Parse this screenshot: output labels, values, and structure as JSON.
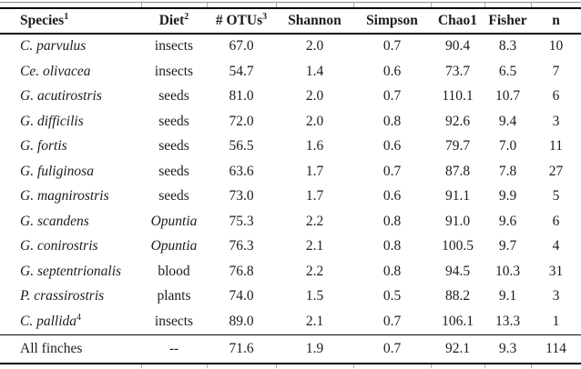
{
  "table": {
    "columns": [
      {
        "label": "Species",
        "sup": "1"
      },
      {
        "label": "Diet",
        "sup": "2"
      },
      {
        "label": "# OTUs",
        "sup": "3"
      },
      {
        "label": "Shannon",
        "sup": ""
      },
      {
        "label": "Simpson",
        "sup": ""
      },
      {
        "label": "Chao1",
        "sup": ""
      },
      {
        "label": "Fisher",
        "sup": ""
      },
      {
        "label": "n",
        "sup": ""
      }
    ],
    "rows": [
      {
        "species": "C. parvulus",
        "species_sup": "",
        "species_italic": true,
        "diet": "insects",
        "diet_italic": false,
        "otus": "67.0",
        "shannon": "2.0",
        "simpson": "0.7",
        "chao1": "90.4",
        "fisher": "8.3",
        "n": "10"
      },
      {
        "species": "Ce. olivacea",
        "species_sup": "",
        "species_italic": true,
        "diet": "insects",
        "diet_italic": false,
        "otus": "54.7",
        "shannon": "1.4",
        "simpson": "0.6",
        "chao1": "73.7",
        "fisher": "6.5",
        "n": "7"
      },
      {
        "species": "G. acutirostris",
        "species_sup": "",
        "species_italic": true,
        "diet": "seeds",
        "diet_italic": false,
        "otus": "81.0",
        "shannon": "2.0",
        "simpson": "0.7",
        "chao1": "110.1",
        "fisher": "10.7",
        "n": "6"
      },
      {
        "species": "G. difficilis",
        "species_sup": "",
        "species_italic": true,
        "diet": "seeds",
        "diet_italic": false,
        "otus": "72.0",
        "shannon": "2.0",
        "simpson": "0.8",
        "chao1": "92.6",
        "fisher": "9.4",
        "n": "3"
      },
      {
        "species": "G. fortis",
        "species_sup": "",
        "species_italic": true,
        "diet": "seeds",
        "diet_italic": false,
        "otus": "56.5",
        "shannon": "1.6",
        "simpson": "0.6",
        "chao1": "79.7",
        "fisher": "7.0",
        "n": "11"
      },
      {
        "species": "G. fuliginosa",
        "species_sup": "",
        "species_italic": true,
        "diet": "seeds",
        "diet_italic": false,
        "otus": "63.6",
        "shannon": "1.7",
        "simpson": "0.7",
        "chao1": "87.8",
        "fisher": "7.8",
        "n": "27"
      },
      {
        "species": "G. magnirostris",
        "species_sup": "",
        "species_italic": true,
        "diet": "seeds",
        "diet_italic": false,
        "otus": "73.0",
        "shannon": "1.7",
        "simpson": "0.6",
        "chao1": "91.1",
        "fisher": "9.9",
        "n": "5"
      },
      {
        "species": "G. scandens",
        "species_sup": "",
        "species_italic": true,
        "diet": "Opuntia",
        "diet_italic": true,
        "otus": "75.3",
        "shannon": "2.2",
        "simpson": "0.8",
        "chao1": "91.0",
        "fisher": "9.6",
        "n": "6"
      },
      {
        "species": "G. conirostris",
        "species_sup": "",
        "species_italic": true,
        "diet": "Opuntia",
        "diet_italic": true,
        "otus": "76.3",
        "shannon": "2.1",
        "simpson": "0.8",
        "chao1": "100.5",
        "fisher": "9.7",
        "n": "4"
      },
      {
        "species": "G. septentrionalis",
        "species_sup": "",
        "species_italic": true,
        "diet": "blood",
        "diet_italic": false,
        "otus": "76.8",
        "shannon": "2.2",
        "simpson": "0.8",
        "chao1": "94.5",
        "fisher": "10.3",
        "n": "31"
      },
      {
        "species": "P. crassirostris",
        "species_sup": "",
        "species_italic": true,
        "diet": "plants",
        "diet_italic": false,
        "otus": "74.0",
        "shannon": "1.5",
        "simpson": "0.5",
        "chao1": "88.2",
        "fisher": "9.1",
        "n": "3"
      },
      {
        "species": "C. pallida",
        "species_sup": "4",
        "species_italic": true,
        "diet": "insects",
        "diet_italic": false,
        "otus": "89.0",
        "shannon": "2.1",
        "simpson": "0.7",
        "chao1": "106.1",
        "fisher": "13.3",
        "n": "1"
      }
    ],
    "summary": {
      "species": "All finches",
      "diet": "--",
      "otus": "71.6",
      "shannon": "1.9",
      "simpson": "0.7",
      "chao1": "92.1",
      "fisher": "9.3",
      "n": "114"
    },
    "colors": {
      "text": "#1c1c1c",
      "rule": "#000000",
      "grid_tick": "#aeaeae",
      "background": "#ffffff"
    }
  }
}
